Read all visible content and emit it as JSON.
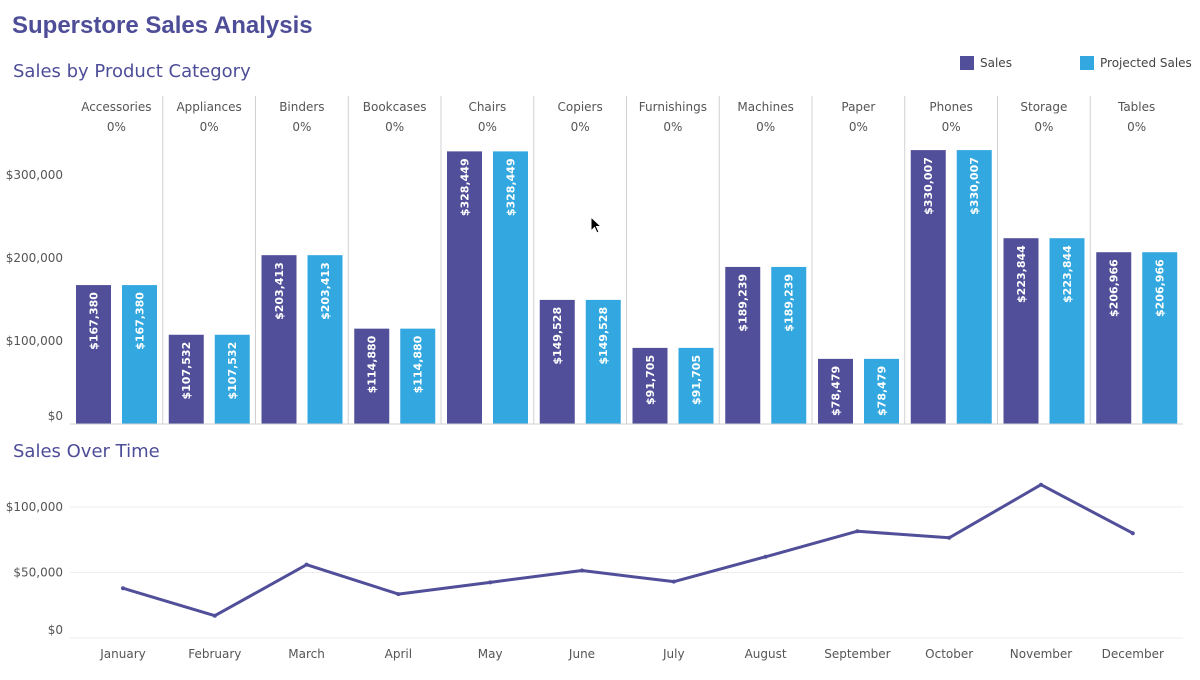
{
  "dashboard_title": "Superstore Sales Analysis",
  "legend": {
    "items": [
      {
        "label": "Sales",
        "color": "#514f99"
      },
      {
        "label": "Projected Sales",
        "color": "#33a8e0"
      }
    ]
  },
  "chart_data": [
    {
      "type": "bar",
      "title": "Sales by Product Category",
      "categories": [
        "Accessories",
        "Appliances",
        "Binders",
        "Bookcases",
        "Chairs",
        "Copiers",
        "Furnishings",
        "Machines",
        "Paper",
        "Phones",
        "Storage",
        "Tables"
      ],
      "category_subtitles": [
        "0%",
        "0%",
        "0%",
        "0%",
        "0%",
        "0%",
        "0%",
        "0%",
        "0%",
        "0%",
        "0%",
        "0%"
      ],
      "series": [
        {
          "name": "Sales",
          "color": "#514f99",
          "values": [
            167380,
            107532,
            203413,
            114880,
            328449,
            149528,
            91705,
            189239,
            78479,
            330007,
            223844,
            206966
          ]
        },
        {
          "name": "Projected Sales",
          "color": "#33a8e0",
          "values": [
            167380,
            107532,
            203413,
            114880,
            328449,
            149528,
            91705,
            189239,
            78479,
            330007,
            223844,
            206966
          ]
        }
      ],
      "data_labels": [
        [
          "$167,380",
          "$107,532",
          "$203,413",
          "$114,880",
          "$328,449",
          "$149,528",
          "$91,705",
          "$189,239",
          "$78,479",
          "$330,007",
          "$223,844",
          "$206,966"
        ],
        [
          "$167,380",
          "$107,532",
          "$203,413",
          "$114,880",
          "$328,449",
          "$149,528",
          "$91,705",
          "$189,239",
          "$78,479",
          "$330,007",
          "$223,844",
          "$206,966"
        ]
      ],
      "ylim": [
        0,
        350000
      ],
      "y_ticks": [
        0,
        100000,
        200000,
        300000
      ],
      "y_tick_labels": [
        "$0",
        "$100,000",
        "$200,000",
        "$300,000"
      ],
      "grid": false,
      "legend_position": "top-right"
    },
    {
      "type": "line",
      "title": "Sales Over Time",
      "x": [
        "January",
        "February",
        "March",
        "April",
        "May",
        "June",
        "July",
        "August",
        "September",
        "October",
        "November",
        "December"
      ],
      "series": [
        {
          "name": "Sales",
          "color": "#514f99",
          "values": [
            38000,
            17000,
            56000,
            33500,
            42500,
            51500,
            43000,
            62000,
            81500,
            76500,
            117000,
            80000
          ]
        }
      ],
      "ylim": [
        0,
        125000
      ],
      "y_ticks": [
        0,
        50000,
        100000
      ],
      "y_tick_labels": [
        "$0",
        "$50,000",
        "$100,000"
      ],
      "grid": true
    }
  ]
}
